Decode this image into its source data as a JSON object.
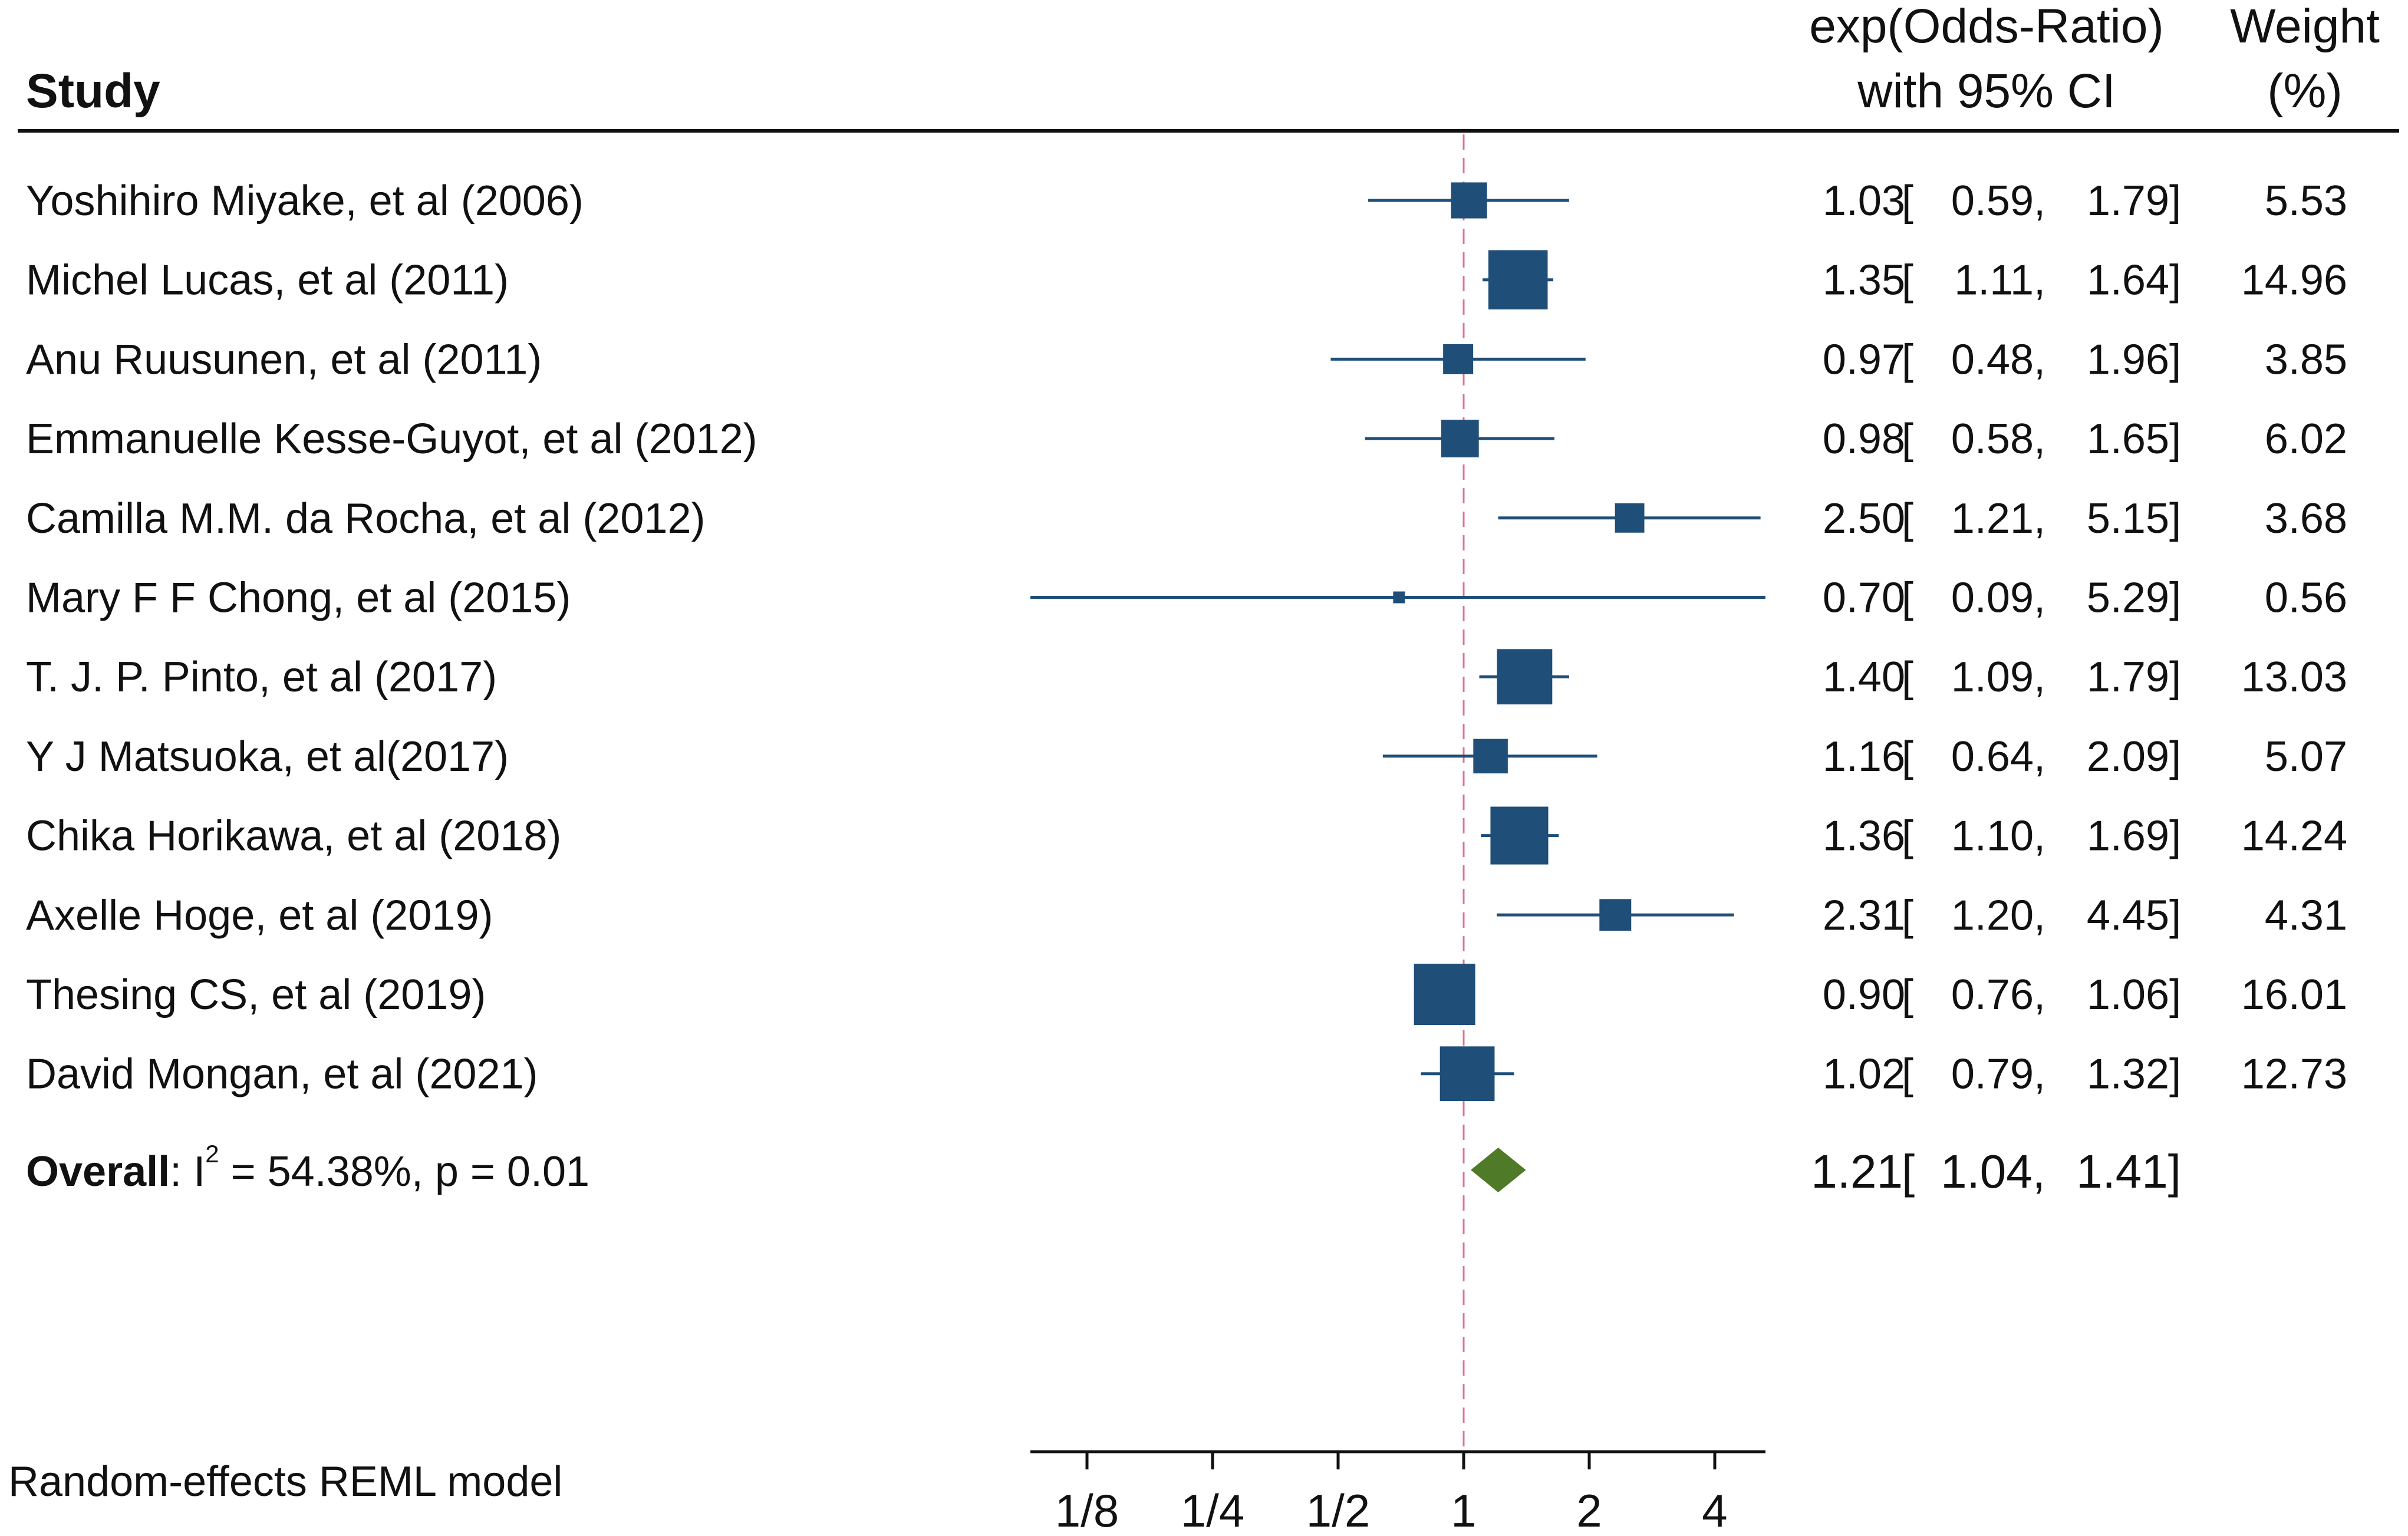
{
  "chart_data": {
    "type": "forest",
    "headers": {
      "study": "Study",
      "effect_line1": "exp(Odds-Ratio)",
      "effect_line2": "with 95% CI",
      "weight_line1": "Weight",
      "weight_line2": "(%)"
    },
    "x_scale": "log2",
    "xlim": [
      0.0833,
      5.5
    ],
    "reference_line": 1,
    "x_ticks": [
      {
        "value": 0.125,
        "label": "1/8"
      },
      {
        "value": 0.25,
        "label": "1/4"
      },
      {
        "value": 0.5,
        "label": "1/2"
      },
      {
        "value": 1,
        "label": "1"
      },
      {
        "value": 2,
        "label": "2"
      },
      {
        "value": 4,
        "label": "4"
      }
    ],
    "studies": [
      {
        "name": "Yoshihiro Miyake, et al (2006)",
        "or": 1.03,
        "lo": 0.59,
        "hi": 1.79,
        "or_text": "1.03",
        "lo_text": "0.59",
        "hi_text": "1.79",
        "weight": 5.53,
        "weight_text": "5.53"
      },
      {
        "name": "Michel Lucas, et al (2011)",
        "or": 1.35,
        "lo": 1.11,
        "hi": 1.64,
        "or_text": "1.35",
        "lo_text": "1.11",
        "hi_text": "1.64",
        "weight": 14.96,
        "weight_text": "14.96"
      },
      {
        "name": "Anu Ruusunen, et al (2011)",
        "or": 0.97,
        "lo": 0.48,
        "hi": 1.96,
        "or_text": "0.97",
        "lo_text": "0.48",
        "hi_text": "1.96",
        "weight": 3.85,
        "weight_text": "3.85"
      },
      {
        "name": "Emmanuelle Kesse-Guyot, et al (2012)",
        "or": 0.98,
        "lo": 0.58,
        "hi": 1.65,
        "or_text": "0.98",
        "lo_text": "0.58",
        "hi_text": "1.65",
        "weight": 6.02,
        "weight_text": "6.02"
      },
      {
        "name": "Camilla M.M. da Rocha, et al (2012)",
        "or": 2.5,
        "lo": 1.21,
        "hi": 5.15,
        "or_text": "2.50",
        "lo_text": "1.21",
        "hi_text": "5.15",
        "weight": 3.68,
        "weight_text": "3.68"
      },
      {
        "name": "Mary F F Chong, et al (2015)",
        "or": 0.7,
        "lo": 0.09,
        "hi": 5.29,
        "or_text": "0.70",
        "lo_text": "0.09",
        "hi_text": "5.29",
        "weight": 0.56,
        "weight_text": "0.56"
      },
      {
        "name": "T. J. P. Pinto, et al (2017)",
        "or": 1.4,
        "lo": 1.09,
        "hi": 1.79,
        "or_text": "1.40",
        "lo_text": "1.09",
        "hi_text": "1.79",
        "weight": 13.03,
        "weight_text": "13.03"
      },
      {
        "name": "Y J Matsuoka, et al(2017)",
        "or": 1.16,
        "lo": 0.64,
        "hi": 2.09,
        "or_text": "1.16",
        "lo_text": "0.64",
        "hi_text": "2.09",
        "weight": 5.07,
        "weight_text": "5.07"
      },
      {
        "name": "Chika Horikawa, et al (2018)",
        "or": 1.36,
        "lo": 1.1,
        "hi": 1.69,
        "or_text": "1.36",
        "lo_text": "1.10",
        "hi_text": "1.69",
        "weight": 14.24,
        "weight_text": "14.24"
      },
      {
        "name": "Axelle Hoge, et al (2019)",
        "or": 2.31,
        "lo": 1.2,
        "hi": 4.45,
        "or_text": "2.31",
        "lo_text": "1.20",
        "hi_text": "4.45",
        "weight": 4.31,
        "weight_text": "4.31"
      },
      {
        "name": "Thesing CS, et al (2019)",
        "or": 0.9,
        "lo": 0.76,
        "hi": 1.06,
        "or_text": "0.90",
        "lo_text": "0.76",
        "hi_text": "1.06",
        "weight": 16.01,
        "weight_text": "16.01"
      },
      {
        "name": "David Mongan, et al (2021)",
        "or": 1.02,
        "lo": 0.79,
        "hi": 1.32,
        "or_text": "1.02",
        "lo_text": "0.79",
        "hi_text": "1.32",
        "weight": 12.73,
        "weight_text": "12.73"
      }
    ],
    "overall": {
      "label_bold": "Overall",
      "label_colon": ":",
      "label_i": "I",
      "label_sup": "2",
      "label_rest": " = 54.38%, p = 0.01",
      "or": 1.21,
      "lo": 1.04,
      "hi": 1.41,
      "or_text": "1.21",
      "lo_text": "1.04",
      "hi_text": "1.41"
    },
    "model_note": "Random-effects REML model",
    "colors": {
      "study_marker": "#1f4e79",
      "overall_diamond": "#4f7a28",
      "reference_line": "#e07090",
      "axis": "#111111"
    }
  }
}
